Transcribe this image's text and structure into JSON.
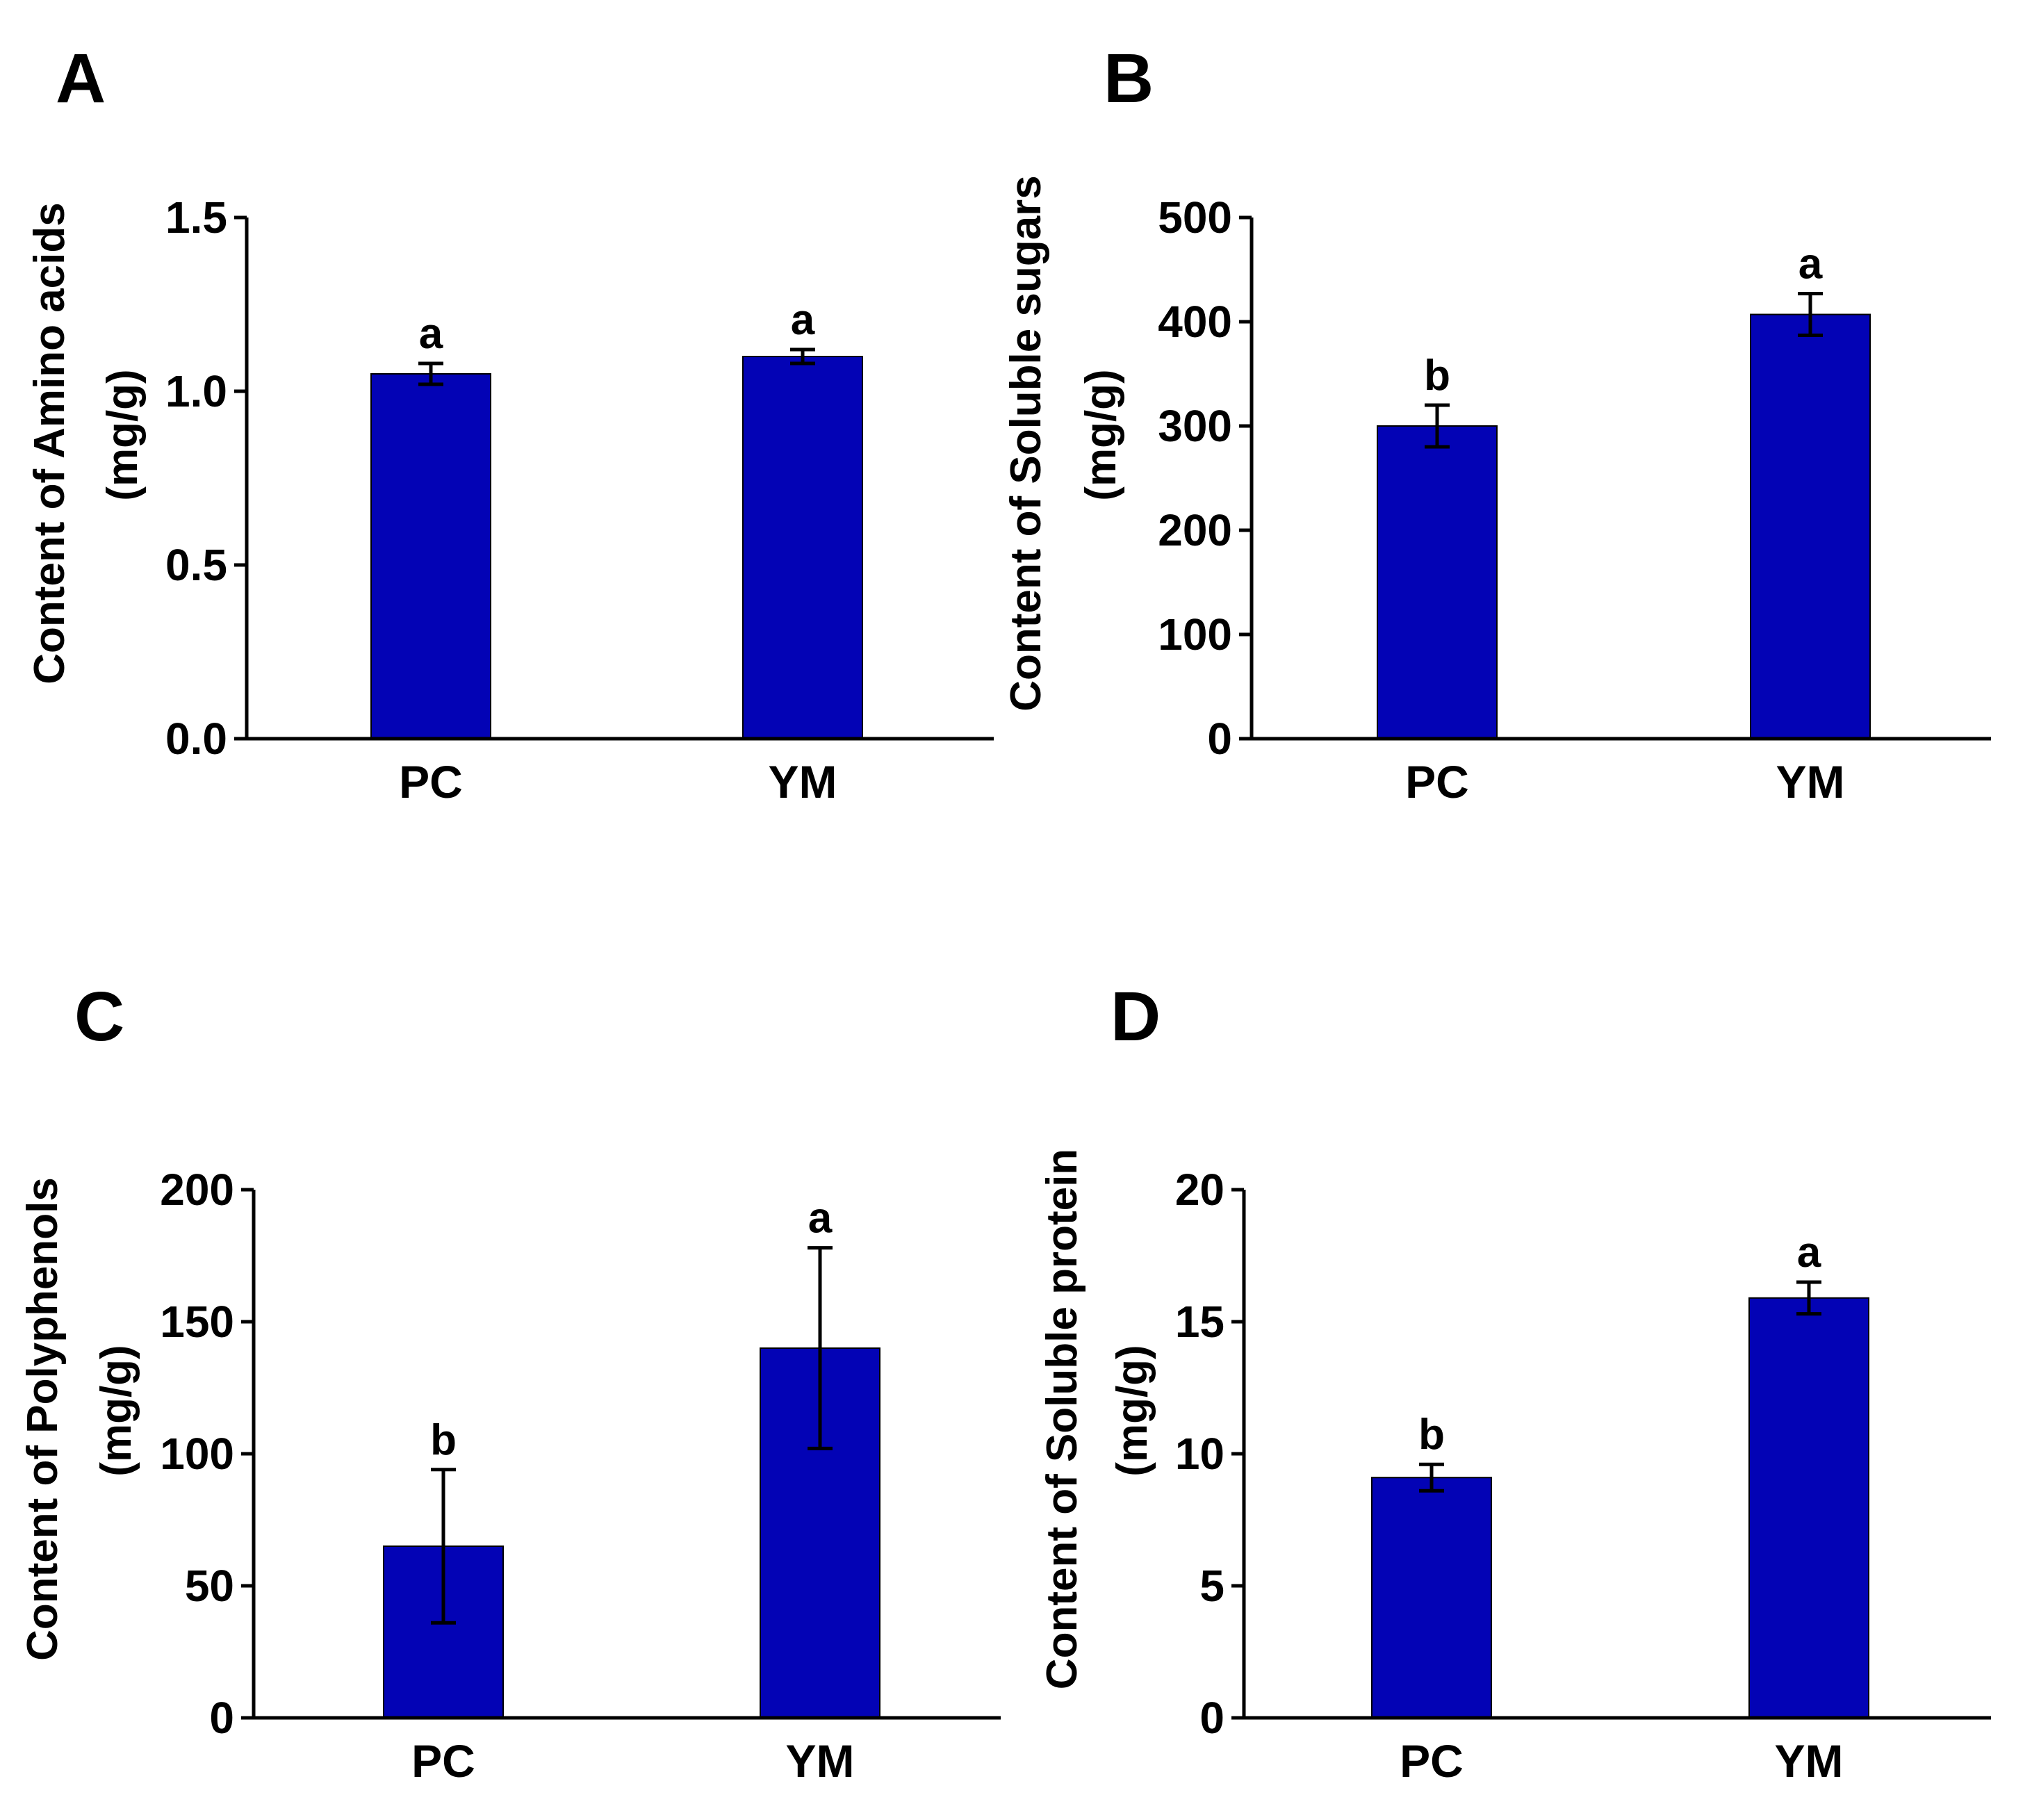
{
  "colors": {
    "bar": "#0303B5",
    "axis": "#000000",
    "text": "#000000"
  },
  "chart_data": [
    {
      "panel_label": "A",
      "type": "bar",
      "categories": [
        "PC",
        "YM"
      ],
      "values": [
        1.05,
        1.1
      ],
      "errors": [
        0.03,
        0.02
      ],
      "significance": [
        "a",
        "a"
      ],
      "ylabel": "Content of Amino acids",
      "yunit": "(mg/g)",
      "ylim": [
        0,
        1.5
      ],
      "yticks": [
        "0.0",
        "0.5",
        "1.0",
        "1.5"
      ]
    },
    {
      "panel_label": "B",
      "type": "bar",
      "categories": [
        "PC",
        "YM"
      ],
      "values": [
        300,
        407
      ],
      "errors": [
        20,
        20
      ],
      "significance": [
        "b",
        "a"
      ],
      "ylabel": "Content of Soluble sugars",
      "yunit": "(mg/g)",
      "ylim": [
        0,
        500
      ],
      "yticks": [
        "0",
        "100",
        "200",
        "300",
        "400",
        "500"
      ]
    },
    {
      "panel_label": "C",
      "type": "bar",
      "categories": [
        "PC",
        "YM"
      ],
      "values": [
        65,
        140
      ],
      "errors": [
        29,
        38
      ],
      "significance": [
        "b",
        "a"
      ],
      "ylabel": "Content of Polyphenols",
      "yunit": "(mg/g)",
      "ylim": [
        0,
        200
      ],
      "yticks": [
        "0",
        "50",
        "100",
        "150",
        "200"
      ]
    },
    {
      "panel_label": "D",
      "type": "bar",
      "categories": [
        "PC",
        "YM"
      ],
      "values": [
        9.1,
        15.9
      ],
      "errors": [
        0.5,
        0.6
      ],
      "significance": [
        "b",
        "a"
      ],
      "ylabel": "Content of Soluble protein",
      "yunit": "(mg/g)",
      "ylim": [
        0,
        20
      ],
      "yticks": [
        "0",
        "5",
        "10",
        "15",
        "20"
      ]
    }
  ]
}
